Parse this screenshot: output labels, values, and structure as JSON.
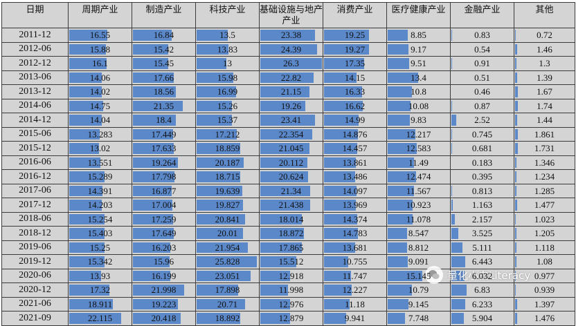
{
  "table": {
    "headers": [
      "日期",
      "周期产业",
      "制造产业",
      "科技产业",
      "基础设施与地产产业",
      "消费产业",
      "医疗健康产业",
      "金融产业",
      "其他"
    ],
    "bar_color": "#5b88c9",
    "cell_background": "#d4d4d4",
    "column_scale_max": [
      26.3,
      26.3,
      26.3,
      26.3,
      26.3,
      26.3,
      26.3,
      26.3
    ],
    "rows": [
      {
        "date": "2011-12",
        "values": [
          "16.55",
          "16.84",
          "13.5",
          "23.38",
          "19.25",
          "8.85",
          "0.83",
          "0.72"
        ]
      },
      {
        "date": "2012-06",
        "values": [
          "15.88",
          "15.42",
          "13.83",
          "24.39",
          "19.27",
          "9.17",
          "0.54",
          "1.46"
        ]
      },
      {
        "date": "2012-12",
        "values": [
          "16.1",
          "15.45",
          "13",
          "26.3",
          "17.35",
          "9.51",
          "0.91",
          "1.3"
        ]
      },
      {
        "date": "2013-06",
        "values": [
          "14.06",
          "17.66",
          "15.98",
          "22.82",
          "14.15",
          "13.4",
          "0.51",
          "1.39"
        ]
      },
      {
        "date": "2013-12",
        "values": [
          "14.02",
          "18.56",
          "16.99",
          "21.15",
          "16.33",
          "10.8",
          "0.46",
          "1.67"
        ]
      },
      {
        "date": "2014-06",
        "values": [
          "14.75",
          "21.35",
          "15.26",
          "19.26",
          "16.62",
          "10.08",
          "0.87",
          "1.74"
        ]
      },
      {
        "date": "2014-12",
        "values": [
          "14.04",
          "18.4",
          "15.37",
          "23.41",
          "14.99",
          "9.83",
          "2.52",
          "1.44"
        ]
      },
      {
        "date": "2015-06",
        "values": [
          "13.283",
          "17.449",
          "17.212",
          "22.354",
          "14.876",
          "12.217",
          "0.745",
          "1.861"
        ]
      },
      {
        "date": "2015-12",
        "values": [
          "13.02",
          "17.633",
          "18.859",
          "21.045",
          "14.457",
          "12.583",
          "0.681",
          "1.731"
        ]
      },
      {
        "date": "2016-06",
        "values": [
          "13.551",
          "19.264",
          "20.187",
          "20.112",
          "13.861",
          "11.49",
          "0.183",
          "1.346"
        ]
      },
      {
        "date": "2016-12",
        "values": [
          "15.289",
          "17.798",
          "18.715",
          "20.624",
          "13.486",
          "12.474",
          "0.395",
          "1.234"
        ]
      },
      {
        "date": "2017-06",
        "values": [
          "14.391",
          "16.877",
          "19.639",
          "21.34",
          "14.097",
          "11.567",
          "0.813",
          "1.285"
        ]
      },
      {
        "date": "2017-12",
        "values": [
          "14.203",
          "17.004",
          "19.827",
          "21.438",
          "13.969",
          "10.923",
          "1.163",
          "1.477"
        ]
      },
      {
        "date": "2018-06",
        "values": [
          "15.254",
          "17.259",
          "20.841",
          "18.014",
          "14.374",
          "11.078",
          "2.157",
          "1.023"
        ]
      },
      {
        "date": "2018-12",
        "values": [
          "15.403",
          "17.649",
          "20.01",
          "18.872",
          "14.783",
          "8.547",
          "3.525",
          "1.205"
        ]
      },
      {
        "date": "2019-06",
        "values": [
          "15.25",
          "16.203",
          "21.954",
          "17.865",
          "13.681",
          "8.812",
          "5.111",
          "1.118"
        ]
      },
      {
        "date": "2019-12",
        "values": [
          "15.342",
          "15.96",
          "25.828",
          "15.512",
          "10.755",
          "9.091",
          "6.443",
          "1.08"
        ]
      },
      {
        "date": "2020-06",
        "values": [
          "13.93",
          "16.199",
          "23.051",
          "12.918",
          "11.747",
          "15.145",
          "6.032",
          "0.977"
        ]
      },
      {
        "date": "2020-12",
        "values": [
          "17.32",
          "21.998",
          "17.898",
          "11.998",
          "12.227",
          "10.79",
          "6.83",
          "0.939"
        ]
      },
      {
        "date": "2021-06",
        "values": [
          "18.911",
          "19.223",
          "20.71",
          "12.976",
          "11.18",
          "9.145",
          "6.233",
          "1.397"
        ]
      },
      {
        "date": "2021-09",
        "values": [
          "22.115",
          "20.418",
          "18.892",
          "12.879",
          "9.941",
          "7.748",
          "5.904",
          "1.476"
        ]
      }
    ]
  },
  "watermark": {
    "text": "量化小白Literacy",
    "logo_icon": "wechat-logo-icon"
  }
}
